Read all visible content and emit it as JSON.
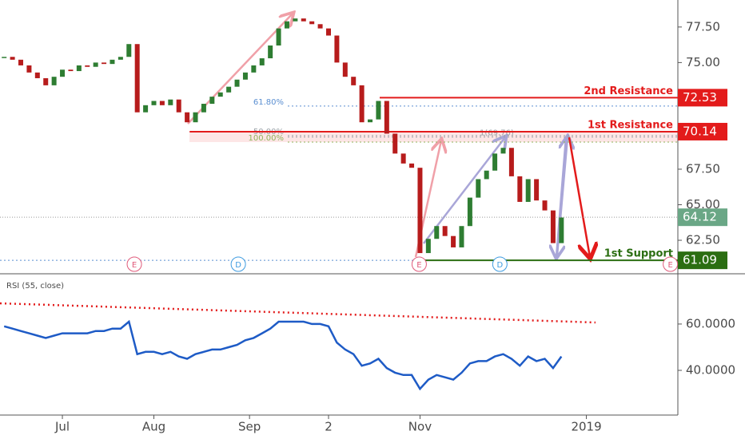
{
  "chart_data": {
    "type": "candlestick",
    "x": [
      -14,
      -12,
      -10,
      -8,
      -6,
      -4,
      -2,
      0,
      2,
      4,
      6,
      8,
      10,
      12,
      14,
      16,
      18,
      20,
      22,
      24,
      26,
      28,
      30,
      32,
      34,
      36,
      38,
      40,
      42,
      44,
      46,
      48,
      50,
      52,
      54,
      56,
      58,
      60,
      62,
      64,
      66,
      68,
      70,
      72,
      74,
      76,
      78,
      80,
      82,
      84,
      86,
      88,
      90,
      92,
      94,
      96,
      98,
      100,
      102,
      104,
      106,
      108,
      110,
      112,
      114,
      116,
      118,
      120
    ],
    "close": [
      75.4,
      75.2,
      74.8,
      74.3,
      73.9,
      73.4,
      74.0,
      74.5,
      74.4,
      74.8,
      74.7,
      75.0,
      74.9,
      75.2,
      75.4,
      76.3,
      71.5,
      72.0,
      72.3,
      72.0,
      72.4,
      71.5,
      70.8,
      71.5,
      72.1,
      72.6,
      72.9,
      73.3,
      73.8,
      74.3,
      74.8,
      75.3,
      76.2,
      77.4,
      77.9,
      78.1,
      77.9,
      77.7,
      77.4,
      76.9,
      75.0,
      74.0,
      73.4,
      70.8,
      71.0,
      72.3,
      70.0,
      68.6,
      67.9,
      67.6,
      61.6,
      62.6,
      63.5,
      62.8,
      62.0,
      63.5,
      65.5,
      66.8,
      67.4,
      68.6,
      69.0,
      67.0,
      65.2,
      66.8,
      65.3,
      64.6,
      62.3,
      64.1
    ],
    "up_color": "#2e7d32",
    "down_color": "#b71c1c",
    "xlim": [
      -15,
      148
    ],
    "ylim": [
      60.2,
      79.4
    ],
    "yticks": [
      {
        "value": 62.5,
        "label": "62.50"
      },
      {
        "value": 65,
        "label": "65.00"
      },
      {
        "value": 67.5,
        "label": "67.50"
      },
      {
        "value": 75,
        "label": "75.00"
      },
      {
        "value": 77.5,
        "label": "77.50"
      }
    ],
    "xticks": [
      {
        "value": 0,
        "label": "Jul"
      },
      {
        "value": 22,
        "label": "Aug"
      },
      {
        "value": 45,
        "label": "Sep"
      },
      {
        "value": 64,
        "label": "2"
      },
      {
        "value": 86,
        "label": "Nov"
      },
      {
        "value": 126,
        "label": "2019"
      }
    ],
    "levels": [
      {
        "name": "2nd Resistance",
        "value": 72.53,
        "start": 76.3,
        "color": "#e31b1b"
      },
      {
        "name": "1st Resistance",
        "value": 70.14,
        "start": 30.6,
        "color": "#e31b1b"
      },
      {
        "name": "1st Support",
        "value": 61.09,
        "start": 87,
        "color": "#2b6e12"
      }
    ],
    "last": {
      "value": 64.12,
      "color": "#6aa786"
    },
    "fib": [
      {
        "label": "61.80%",
        "value": 71.94,
        "color": "#5b8fd1"
      },
      {
        "label": "50.00%",
        "value": 69.86,
        "color": "#9aa0a6"
      },
      {
        "label": "1(69.76)",
        "value": 69.76,
        "color": "#9aa0a6"
      },
      {
        "label": "100.00%",
        "value": 69.41,
        "color": "#8fb35a"
      }
    ],
    "events": [
      {
        "label": "E",
        "x": 17.3,
        "color": "#e05a7a"
      },
      {
        "label": "D",
        "x": 42.3,
        "color": "#3d9be0"
      },
      {
        "label": "E",
        "x": 85.8,
        "color": "#e05a7a"
      },
      {
        "label": "D",
        "x": 105.2,
        "color": "#3d9be0"
      },
      {
        "label": "E",
        "x": 146.2,
        "color": "#e05a7a"
      }
    ],
    "rsi": {
      "title": "RSI (55, close)",
      "values": [
        59,
        58,
        57,
        56,
        55,
        54,
        55,
        56,
        56,
        56,
        56,
        57,
        57,
        58,
        58,
        61,
        47,
        48,
        48,
        47,
        48,
        46,
        45,
        47,
        48,
        49,
        49,
        50,
        51,
        53,
        54,
        56,
        58,
        61,
        61,
        61,
        61,
        60,
        60,
        59,
        52,
        49,
        47,
        42,
        43,
        45,
        41,
        39,
        38,
        38,
        32,
        36,
        38,
        37,
        36,
        39,
        43,
        44,
        44,
        46,
        47,
        45,
        42,
        46,
        44,
        45,
        41,
        46
      ],
      "color": "#1e5bc6",
      "ylim": [
        20.7,
        81
      ],
      "yticks": [
        {
          "value": 40,
          "label": "40.0000"
        },
        {
          "value": 60,
          "label": "60.0000"
        }
      ]
    }
  }
}
